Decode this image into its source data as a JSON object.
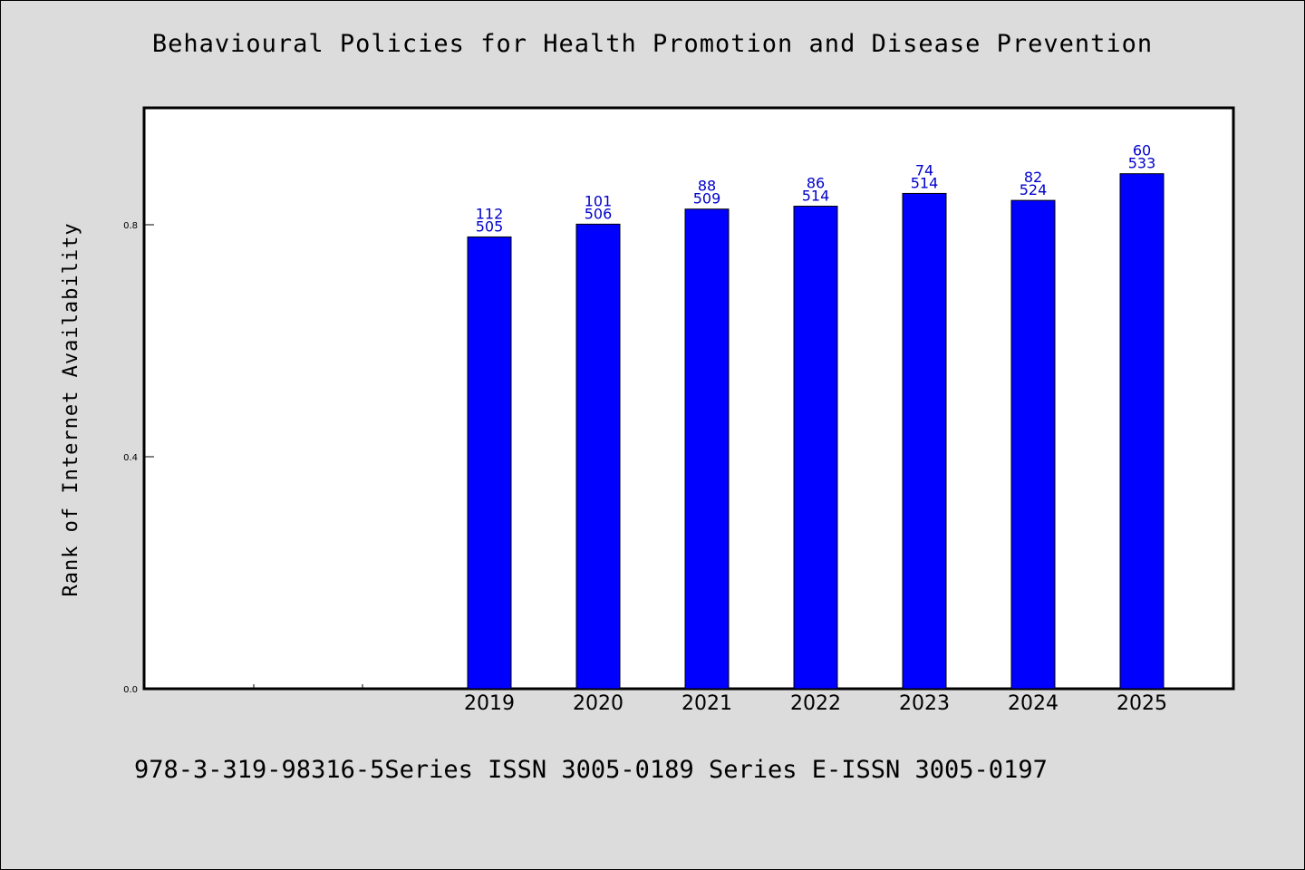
{
  "page": {
    "title": "Behavioural Policies for Health Promotion and Disease Prevention",
    "footer": "978-3-319-98316-5Series ISSN 3005-0189 Series E-ISSN 3005-0197"
  },
  "chart_data": {
    "type": "bar",
    "title": "Behavioural Policies for Health Promotion and Disease Prevention",
    "xlabel": "",
    "ylabel": "Rank of Internet Availability",
    "ylim": [
      0,
      1.0
    ],
    "yticks": [
      0.0,
      0.4,
      0.8
    ],
    "ytick_labels": [
      "0.0",
      "0.4",
      "0.8"
    ],
    "grid": false,
    "categories": [
      "",
      "",
      "",
      "2019",
      "2020",
      "2021",
      "2022",
      "2023",
      "2024",
      "2025"
    ],
    "values": [
      null,
      null,
      null,
      0.779,
      0.801,
      0.827,
      0.832,
      0.854,
      0.842,
      0.888
    ],
    "labels_top": [
      "",
      "",
      "",
      "112",
      "101",
      "88",
      "86",
      "74",
      "82",
      "60"
    ],
    "labels_bottom": [
      "",
      "",
      "",
      "505",
      "506",
      "509",
      "514",
      "514",
      "524",
      "533"
    ],
    "bar_color": "#0000ff",
    "label_color": "#0000cc"
  }
}
